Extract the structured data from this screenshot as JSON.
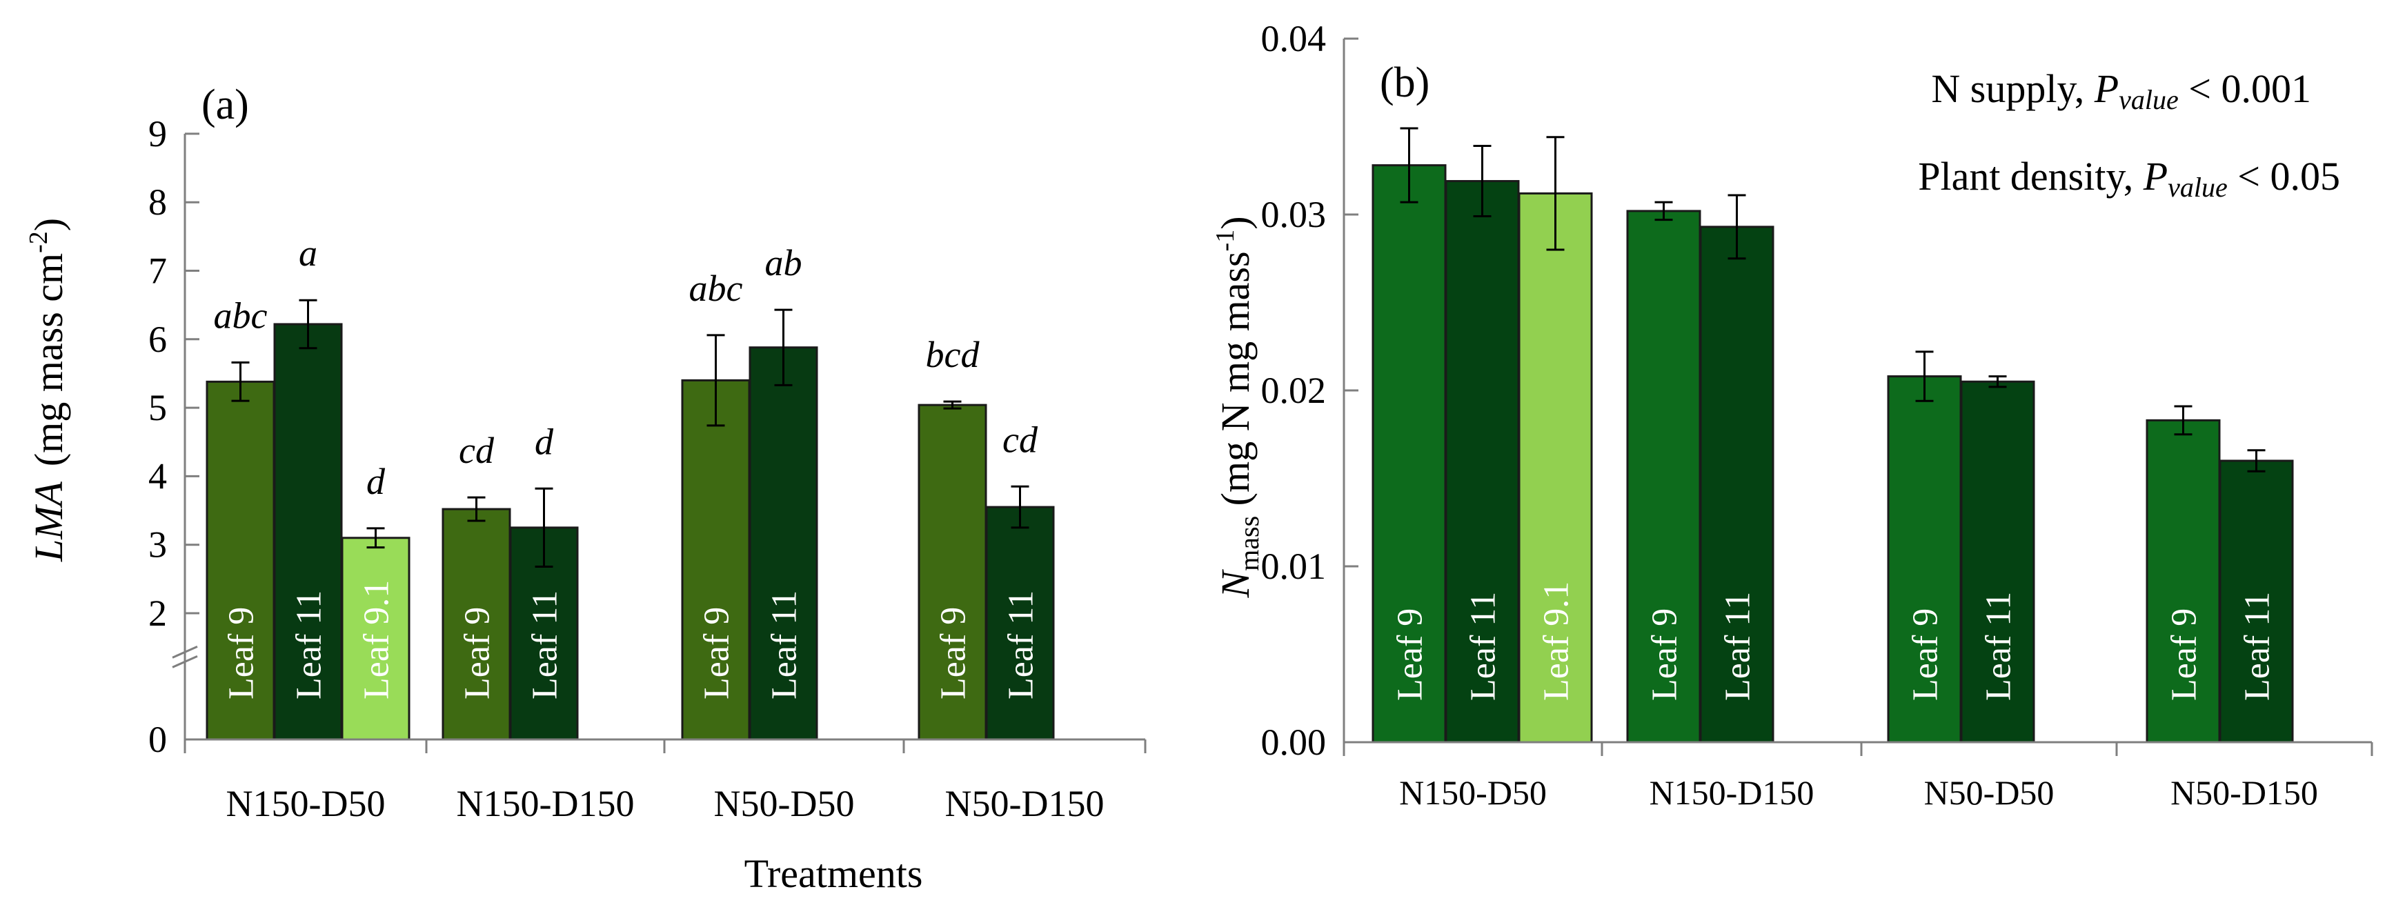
{
  "figure": {
    "colors": {
      "leaf9_a": "#3e6a12",
      "leaf11_a": "#073a12",
      "leaf91_a": "#99dc58",
      "leaf9_b": "#0d6b1c",
      "leaf11_b": "#044212",
      "leaf91_b": "#92d050",
      "stroke": "#1a1a1a"
    }
  },
  "chart_data": [
    {
      "type": "bar",
      "panel_label": "(a)",
      "title": "",
      "xlabel": "Treatments",
      "ylabel": {
        "italic": "LMA",
        "rest": "(mg mass cm",
        "sup": "-2",
        "close": ")"
      },
      "ylim": [
        0,
        9
      ],
      "yticks": [
        "0",
        "2",
        "3",
        "4",
        "5",
        "6",
        "7",
        "8",
        "9"
      ],
      "ytick_values": [
        0,
        2,
        3,
        4,
        5,
        6,
        7,
        8,
        9
      ],
      "y_break": true,
      "categories": [
        "N150-D50",
        "N150-D150",
        "N50-D50",
        "N50-D150"
      ],
      "groups": [
        {
          "category": "N150-D50",
          "bars": [
            {
              "series": "Leaf 9",
              "value": 5.38,
              "error": 0.28,
              "sig": "abc"
            },
            {
              "series": "Leaf 11",
              "value": 6.22,
              "error": 0.35,
              "sig": "a"
            },
            {
              "series": "Leaf 9.1",
              "value": 3.1,
              "error": 0.14,
              "sig": "d"
            }
          ]
        },
        {
          "category": "N150-D150",
          "bars": [
            {
              "series": "Leaf 9",
              "value": 3.52,
              "error": 0.17,
              "sig": "cd"
            },
            {
              "series": "Leaf 11",
              "value": 3.25,
              "error": 0.57,
              "sig": "d"
            }
          ]
        },
        {
          "category": "N50-D50",
          "bars": [
            {
              "series": "Leaf 9",
              "value": 5.4,
              "error": 0.66,
              "sig": "abc"
            },
            {
              "series": "Leaf 11",
              "value": 5.88,
              "error": 0.55,
              "sig": "ab"
            }
          ]
        },
        {
          "category": "N50-D150",
          "bars": [
            {
              "series": "Leaf 9",
              "value": 5.04,
              "error": 0.05,
              "sig": "bcd"
            },
            {
              "series": "Leaf 11",
              "value": 3.55,
              "error": 0.3,
              "sig": "cd"
            }
          ]
        }
      ]
    },
    {
      "type": "bar",
      "panel_label": "(b)",
      "title": "",
      "xlabel": "",
      "ylabel": {
        "main": "N",
        "sub": "mass",
        "rest": " (mg N mg mass",
        "sup": "-1",
        "close": ")"
      },
      "ylim": [
        0,
        0.04
      ],
      "yticks": [
        "0.00",
        "0.01",
        "0.02",
        "0.03",
        "0.04"
      ],
      "ytick_values": [
        0,
        0.01,
        0.02,
        0.03,
        0.04
      ],
      "annotations": [
        {
          "label": "N supply, ",
          "p": "P",
          "p_sub": "value",
          "value": " < 0.001"
        },
        {
          "label": "Plant density, ",
          "p": "P",
          "p_sub": "value",
          "value": " < 0.05"
        }
      ],
      "categories": [
        "N150-D50",
        "N150-D150",
        "N50-D50",
        "N50-D150"
      ],
      "groups": [
        {
          "category": "N150-D50",
          "bars": [
            {
              "series": "Leaf 9",
              "value": 0.0328,
              "error": 0.0021
            },
            {
              "series": "Leaf 11",
              "value": 0.0319,
              "error": 0.002
            },
            {
              "series": "Leaf 9.1",
              "value": 0.0312,
              "error": 0.0032
            }
          ]
        },
        {
          "category": "N150-D150",
          "bars": [
            {
              "series": "Leaf 9",
              "value": 0.0302,
              "error": 0.0005
            },
            {
              "series": "Leaf 11",
              "value": 0.0293,
              "error": 0.0018
            }
          ]
        },
        {
          "category": "N50-D50",
          "bars": [
            {
              "series": "Leaf 9",
              "value": 0.0208,
              "error": 0.0014
            },
            {
              "series": "Leaf 11",
              "value": 0.0205,
              "error": 0.0003
            }
          ]
        },
        {
          "category": "N50-D150",
          "bars": [
            {
              "series": "Leaf 9",
              "value": 0.0183,
              "error": 0.0008
            },
            {
              "series": "Leaf 11",
              "value": 0.016,
              "error": 0.0006
            }
          ]
        }
      ]
    }
  ]
}
